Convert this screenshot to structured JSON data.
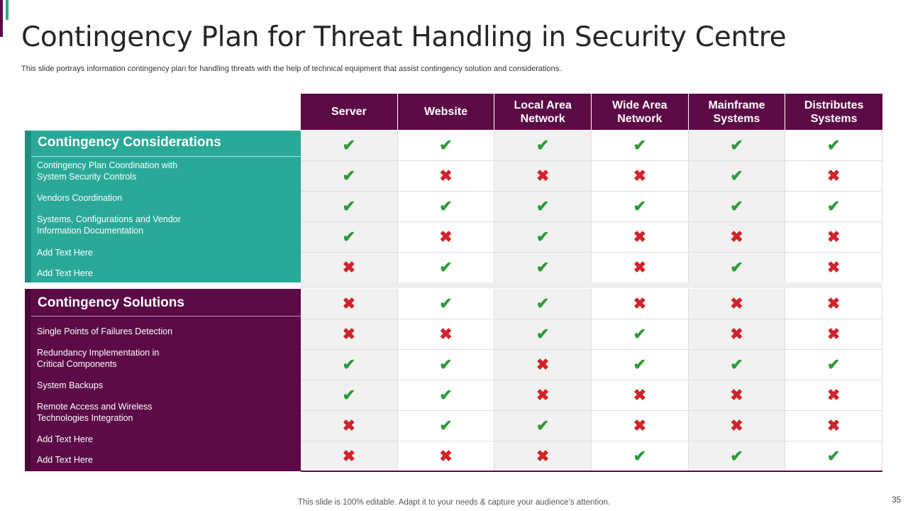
{
  "slide": {
    "title": "Contingency Plan for Threat Handling in Security Centre",
    "subtitle": "This slide portrays information contingency plan for handling threats with the help of technical equipment that assist contingency solution and considerations.",
    "footer": "This slide is 100% editable. Adapt it to your needs & capture your audience’s attention.",
    "page_number": "35"
  },
  "columns": [
    "Server",
    "Website",
    "Local Area Network",
    "Wide Area Network",
    "Mainframe Systems",
    "Distributes Systems"
  ],
  "considerations": {
    "title": "Contingency Considerations",
    "color": "#2aa898",
    "items": [
      "Contingency Plan Coordination  with System Security Controls",
      "Vendors Coordination",
      "Systems, Configurations  and Vendor Information  Documentation",
      "Add Text Here",
      "Add Text Here"
    ],
    "rows": [
      [
        true,
        true,
        true,
        true,
        true,
        true
      ],
      [
        true,
        false,
        false,
        false,
        true,
        false
      ],
      [
        true,
        true,
        true,
        true,
        true,
        true
      ],
      [
        true,
        false,
        true,
        false,
        false,
        false
      ],
      [
        false,
        true,
        true,
        false,
        true,
        false
      ]
    ]
  },
  "solutions": {
    "title": "Contingency Solutions",
    "color": "#5b0a46",
    "items": [
      "Single Points of Failures Detection",
      "Redundancy Implementation in Critical Components",
      "System Backups",
      "Remote Access and Wireless Technologies Integration",
      "Add Text Here",
      "Add Text Here"
    ],
    "rows": [
      [
        false,
        true,
        true,
        false,
        false,
        false
      ],
      [
        false,
        false,
        true,
        true,
        false,
        false
      ],
      [
        true,
        true,
        false,
        true,
        true,
        true
      ],
      [
        true,
        true,
        false,
        false,
        false,
        false
      ],
      [
        false,
        true,
        true,
        false,
        false,
        false
      ],
      [
        false,
        false,
        false,
        true,
        true,
        true
      ]
    ]
  },
  "icons": {
    "yes": "check-icon",
    "no": "cross-icon"
  },
  "colors": {
    "check": "#2e9a3a",
    "cross": "#d0232a",
    "header": "#5b0a46"
  }
}
